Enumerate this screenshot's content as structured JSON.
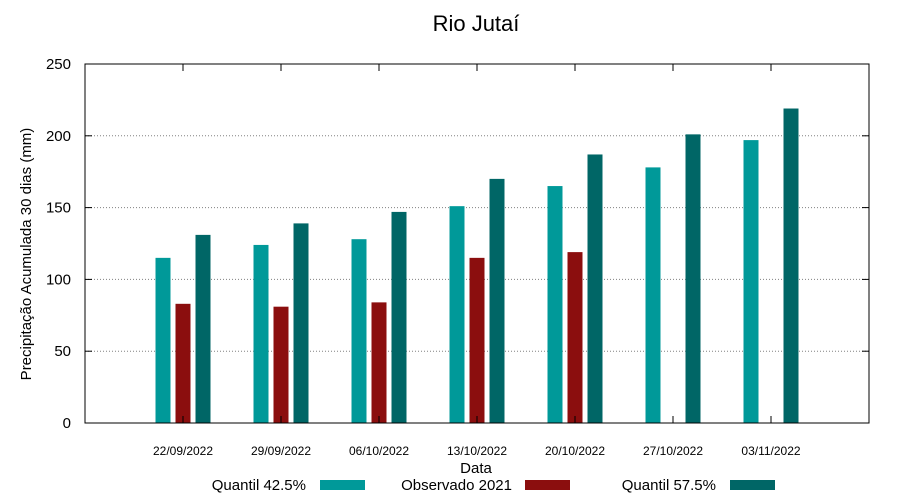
{
  "chart_data": {
    "type": "bar",
    "title": "Rio Jutaí",
    "xlabel": "Data",
    "ylabel": "Precipitação Acumulada 30 dias (mm)",
    "ylim": [
      0,
      250
    ],
    "yticks": [
      0,
      50,
      100,
      150,
      200,
      250
    ],
    "grid": true,
    "legend_position": "bottom",
    "categories": [
      "22/09/2022",
      "29/09/2022",
      "06/10/2022",
      "13/10/2022",
      "20/10/2022",
      "27/10/2022",
      "03/11/2022"
    ],
    "series": [
      {
        "name": "Quantil 42.5%",
        "color": "#009999",
        "values": [
          115,
          124,
          128,
          151,
          165,
          178,
          197
        ]
      },
      {
        "name": "Observado 2021",
        "color": "#8b0e0e",
        "values": [
          83,
          81,
          84,
          115,
          119,
          null,
          null
        ]
      },
      {
        "name": "Quantil 57.5%",
        "color": "#006666",
        "values": [
          131,
          139,
          147,
          170,
          187,
          201,
          219
        ]
      }
    ]
  }
}
